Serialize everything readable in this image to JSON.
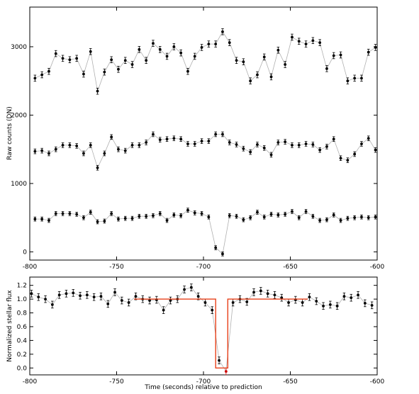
{
  "chart_data": [
    {
      "type": "line",
      "title": "",
      "xlabel": "",
      "ylabel": "Raw counts (DN)",
      "xlim": [
        -800,
        -600
      ],
      "ylim": [
        -120,
        3580
      ],
      "xticks": [
        -800,
        -750,
        -700,
        -650,
        -600
      ],
      "xtick_labels": [
        "-800",
        "-750",
        "-700",
        "-650",
        "-600"
      ],
      "yticks": [
        0,
        1000,
        2000,
        3000
      ],
      "ytick_labels": [
        "0",
        "1000",
        "2000",
        "3000"
      ],
      "grid": false,
      "legend": "none",
      "x": [
        -797,
        -793,
        -789,
        -785,
        -781,
        -777,
        -773,
        -769,
        -765,
        -761,
        -757,
        -753,
        -749,
        -745,
        -741,
        -737,
        -733,
        -729,
        -725,
        -721,
        -717,
        -713,
        -709,
        -705,
        -701,
        -697,
        -693,
        -689,
        -685,
        -681,
        -677,
        -673,
        -669,
        -665,
        -661,
        -657,
        -653,
        -649,
        -645,
        -641,
        -637,
        -633,
        -629,
        -625,
        -621,
        -617,
        -613,
        -609,
        -605,
        -601
      ],
      "series": [
        {
          "color": "#000000",
          "line_color": "#b0b0b0",
          "values": [
            2540,
            2590,
            2640,
            2900,
            2830,
            2810,
            2830,
            2600,
            2930,
            2350,
            2630,
            2810,
            2670,
            2800,
            2740,
            2960,
            2800,
            3050,
            2960,
            2860,
            3000,
            2910,
            2640,
            2860,
            2990,
            3040,
            3040,
            3220,
            3060,
            2800,
            2780,
            2500,
            2590,
            2850,
            2560,
            2950,
            2740,
            3140,
            3080,
            3040,
            3090,
            3060,
            2680,
            2870,
            2880,
            2500,
            2540,
            2540,
            2920,
            2990
          ],
          "errors": [
            45,
            45,
            45,
            45,
            45,
            45,
            45,
            45,
            45,
            45,
            45,
            45,
            45,
            45,
            45,
            45,
            45,
            45,
            45,
            45,
            45,
            45,
            45,
            45,
            45,
            45,
            45,
            45,
            45,
            45,
            45,
            45,
            45,
            45,
            45,
            45,
            45,
            45,
            45,
            45,
            45,
            45,
            45,
            45,
            45,
            45,
            45,
            45,
            45,
            45
          ]
        },
        {
          "color": "#000000",
          "line_color": "#b0b0b0",
          "values": [
            1470,
            1480,
            1440,
            1500,
            1560,
            1560,
            1550,
            1440,
            1560,
            1230,
            1440,
            1680,
            1500,
            1480,
            1560,
            1560,
            1600,
            1720,
            1640,
            1650,
            1660,
            1650,
            1580,
            1580,
            1620,
            1620,
            1720,
            1720,
            1600,
            1570,
            1510,
            1460,
            1570,
            1520,
            1420,
            1600,
            1610,
            1560,
            1560,
            1580,
            1570,
            1490,
            1540,
            1650,
            1370,
            1340,
            1430,
            1580,
            1660,
            1490
          ],
          "errors": [
            35,
            35,
            35,
            35,
            35,
            35,
            35,
            35,
            35,
            35,
            35,
            35,
            35,
            35,
            35,
            35,
            35,
            35,
            35,
            35,
            35,
            35,
            35,
            35,
            35,
            35,
            35,
            35,
            35,
            35,
            35,
            35,
            35,
            35,
            35,
            35,
            35,
            35,
            35,
            35,
            35,
            35,
            35,
            35,
            35,
            35,
            35,
            35,
            35,
            35
          ]
        },
        {
          "color": "#000000",
          "line_color": "#b0b0b0",
          "values": [
            480,
            480,
            460,
            560,
            560,
            560,
            550,
            500,
            580,
            440,
            450,
            560,
            480,
            490,
            490,
            520,
            520,
            530,
            560,
            460,
            540,
            530,
            610,
            570,
            560,
            510,
            60,
            -30,
            530,
            520,
            470,
            500,
            580,
            510,
            550,
            540,
            550,
            590,
            500,
            590,
            520,
            460,
            470,
            540,
            460,
            490,
            500,
            510,
            500,
            510
          ],
          "errors": [
            30,
            30,
            30,
            30,
            30,
            30,
            30,
            30,
            30,
            30,
            30,
            30,
            30,
            30,
            30,
            30,
            30,
            30,
            30,
            30,
            30,
            30,
            30,
            30,
            30,
            30,
            30,
            30,
            30,
            30,
            30,
            30,
            30,
            30,
            30,
            30,
            30,
            30,
            30,
            30,
            30,
            30,
            30,
            30,
            30,
            30,
            30,
            30,
            30,
            30
          ]
        }
      ]
    },
    {
      "type": "line",
      "title": "",
      "xlabel": "Time (seconds) relative to prediction",
      "ylabel": "Normalized stellar flux",
      "xlim": [
        -800,
        -600
      ],
      "ylim": [
        -0.1,
        1.32
      ],
      "xticks": [
        -800,
        -750,
        -700,
        -650,
        -600
      ],
      "xtick_labels": [
        "-800",
        "-750",
        "-700",
        "-650",
        "-600"
      ],
      "yticks": [
        0.0,
        0.2,
        0.4,
        0.6,
        0.8,
        1.0,
        1.2
      ],
      "ytick_labels": [
        "0.0",
        "0.2",
        "0.4",
        "0.6",
        "0.8",
        "1.0",
        "1.2"
      ],
      "grid": false,
      "legend": "none",
      "x": [
        -799,
        -795,
        -791,
        -787,
        -783,
        -779,
        -775,
        -771,
        -767,
        -763,
        -759,
        -755,
        -751,
        -747,
        -743,
        -739,
        -735,
        -731,
        -727,
        -723,
        -719,
        -715,
        -711,
        -707,
        -703,
        -699,
        -695,
        -691,
        -687,
        -683,
        -679,
        -675,
        -671,
        -667,
        -663,
        -659,
        -655,
        -651,
        -647,
        -643,
        -639,
        -635,
        -631,
        -627,
        -623,
        -619,
        -615,
        -611,
        -607,
        -603
      ],
      "series": [
        {
          "color": "#000000",
          "line_color": "#b0b0b0",
          "values": [
            1.08,
            1.03,
            1.0,
            0.92,
            1.06,
            1.08,
            1.09,
            1.05,
            1.06,
            1.03,
            1.04,
            0.93,
            1.1,
            0.98,
            0.95,
            1.04,
            1.0,
            0.98,
            0.99,
            0.84,
            0.98,
            1.0,
            1.14,
            1.17,
            1.04,
            0.95,
            0.84,
            0.11,
            -0.05,
            0.95,
            1.0,
            0.96,
            1.1,
            1.12,
            1.08,
            1.06,
            1.02,
            0.95,
            0.99,
            0.95,
            1.03,
            0.97,
            0.9,
            0.92,
            0.9,
            1.04,
            1.02,
            1.06,
            0.94,
            0.91
          ],
          "errors": [
            0.05,
            0.05,
            0.05,
            0.05,
            0.05,
            0.05,
            0.05,
            0.05,
            0.05,
            0.05,
            0.05,
            0.05,
            0.05,
            0.05,
            0.05,
            0.05,
            0.05,
            0.05,
            0.05,
            0.05,
            0.05,
            0.05,
            0.05,
            0.05,
            0.05,
            0.05,
            0.05,
            0.05,
            0.05,
            0.05,
            0.05,
            0.05,
            0.05,
            0.05,
            0.05,
            0.05,
            0.05,
            0.05,
            0.05,
            0.05,
            0.05,
            0.05,
            0.05,
            0.05,
            0.05,
            0.05,
            0.05,
            0.05,
            0.05,
            0.05
          ],
          "highlight_index": 28,
          "highlight_color": "#cc0000"
        },
        {
          "type": "step",
          "color": "#e8401a",
          "x": [
            -740,
            -693,
            -693,
            -686,
            -686,
            -640
          ],
          "values": [
            1.0,
            1.0,
            0.0,
            0.0,
            1.0,
            1.0
          ]
        }
      ]
    }
  ]
}
